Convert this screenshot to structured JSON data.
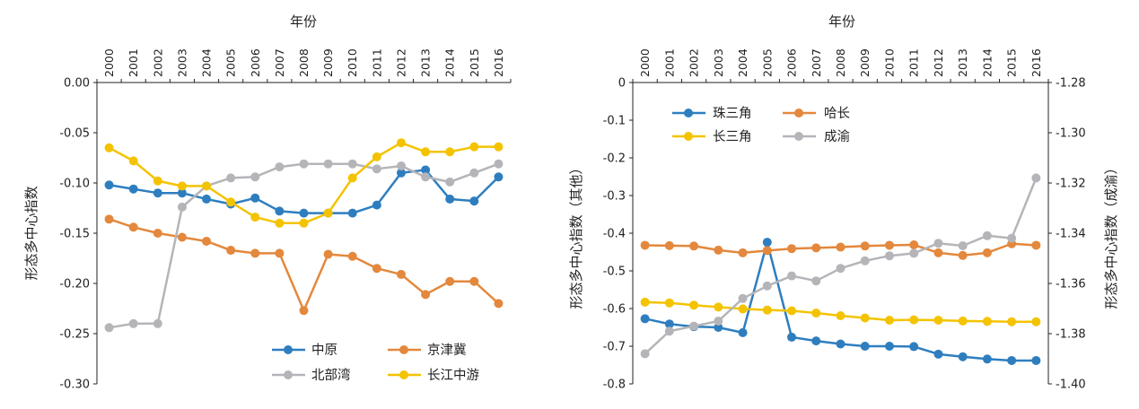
{
  "colors": {
    "blue": "#2e7ebf",
    "orange": "#e3883c",
    "gray": "#b5b5b9",
    "yellow": "#f4c300"
  },
  "chart_data": [
    {
      "type": "line",
      "xlabel": "年份",
      "ylabel": "形态多中心指数",
      "x": [
        "2000",
        "2001",
        "2002",
        "2003",
        "2004",
        "2005",
        "2006",
        "2007",
        "2008",
        "2009",
        "2010",
        "2011",
        "2012",
        "2013",
        "2014",
        "2015",
        "2016"
      ],
      "ylim": [
        -0.3,
        0.0
      ],
      "yticks": [
        "0.00",
        "-0.05",
        "-0.10",
        "-0.15",
        "-0.20",
        "-0.25",
        "-0.30"
      ],
      "legend": "bottom-right",
      "series": [
        {
          "name": "中原",
          "color": "#2e7ebf",
          "values": [
            -0.102,
            -0.106,
            -0.11,
            -0.11,
            -0.116,
            -0.121,
            -0.115,
            -0.128,
            -0.13,
            -0.13,
            -0.13,
            -0.122,
            -0.09,
            -0.087,
            -0.116,
            -0.118,
            -0.094
          ]
        },
        {
          "name": "京津冀",
          "color": "#e3883c",
          "values": [
            -0.136,
            -0.144,
            -0.15,
            -0.154,
            -0.158,
            -0.167,
            -0.17,
            -0.17,
            -0.227,
            -0.171,
            -0.173,
            -0.185,
            -0.191,
            -0.211,
            -0.198,
            -0.198,
            -0.22
          ]
        },
        {
          "name": "北部湾",
          "color": "#b5b5b9",
          "values": [
            -0.244,
            -0.24,
            -0.24,
            -0.124,
            -0.103,
            -0.095,
            -0.094,
            -0.084,
            -0.081,
            -0.081,
            -0.081,
            -0.086,
            -0.083,
            -0.094,
            -0.099,
            -0.09,
            -0.081
          ]
        },
        {
          "name": "长江中游",
          "color": "#f4c300",
          "values": [
            -0.065,
            -0.078,
            -0.098,
            -0.103,
            -0.103,
            -0.119,
            -0.134,
            -0.14,
            -0.14,
            -0.13,
            -0.095,
            -0.074,
            -0.06,
            -0.069,
            -0.069,
            -0.064,
            -0.064
          ]
        }
      ]
    },
    {
      "type": "line",
      "xlabel": "年份",
      "ylabel_left": "形态多中心指数（其他）",
      "ylabel_right": "形态多中心指数（成渝）",
      "x": [
        "2000",
        "2001",
        "2002",
        "2003",
        "2004",
        "2005",
        "2006",
        "2007",
        "2008",
        "2009",
        "2010",
        "2011",
        "2012",
        "2013",
        "2014",
        "2015",
        "2016"
      ],
      "ylim_left": [
        -0.8,
        0
      ],
      "ylim_right": [
        -1.4,
        -1.28
      ],
      "yticks_left": [
        "0",
        "-0.1",
        "-0.2",
        "-0.3",
        "-0.4",
        "-0.5",
        "-0.6",
        "-0.7",
        "-0.8"
      ],
      "yticks_right": [
        "-1.28",
        "-1.30",
        "-1.32",
        "-1.34",
        "-1.36",
        "-1.38",
        "-1.40"
      ],
      "legend": "top-left",
      "series": [
        {
          "name": "珠三角",
          "axis": "left",
          "color": "#2e7ebf",
          "values": [
            -0.627,
            -0.641,
            -0.648,
            -0.65,
            -0.664,
            -0.424,
            -0.676,
            -0.686,
            -0.694,
            -0.7,
            -0.7,
            -0.701,
            -0.721,
            -0.728,
            -0.734,
            -0.738,
            -0.738
          ]
        },
        {
          "name": "哈长",
          "axis": "left",
          "color": "#e3883c",
          "values": [
            -0.432,
            -0.433,
            -0.434,
            -0.445,
            -0.452,
            -0.446,
            -0.441,
            -0.439,
            -0.437,
            -0.434,
            -0.432,
            -0.431,
            -0.452,
            -0.459,
            -0.452,
            -0.428,
            -0.432
          ]
        },
        {
          "name": "长三角",
          "axis": "left",
          "color": "#f4c300",
          "values": [
            -0.583,
            -0.585,
            -0.591,
            -0.596,
            -0.601,
            -0.604,
            -0.606,
            -0.612,
            -0.619,
            -0.625,
            -0.631,
            -0.63,
            -0.631,
            -0.633,
            -0.634,
            -0.635,
            -0.635
          ]
        },
        {
          "name": "成渝",
          "axis": "right",
          "color": "#b5b5b9",
          "values": [
            -1.388,
            -1.379,
            -1.377,
            -1.375,
            -1.366,
            -1.361,
            -1.357,
            -1.359,
            -1.354,
            -1.351,
            -1.349,
            -1.348,
            -1.344,
            -1.345,
            -1.341,
            -1.342,
            -1.318
          ]
        }
      ]
    }
  ]
}
